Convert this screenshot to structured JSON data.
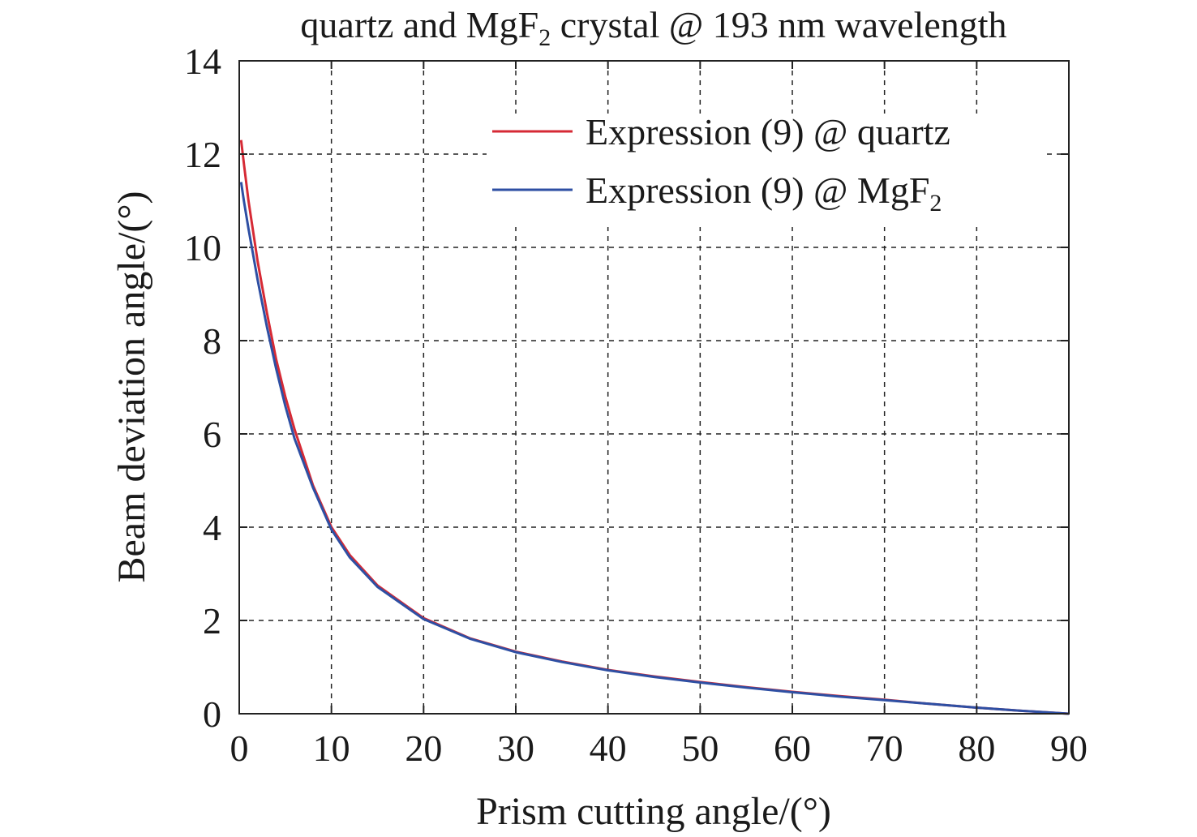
{
  "chart_data": {
    "type": "line",
    "title_parts": {
      "before": "quartz and MgF",
      "sub": "2",
      "after": " crystal  @ 193 nm wavelength"
    },
    "xlabel": "Prism cutting angle/(°)",
    "ylabel": "Beam deviation angle/(°)",
    "xlim": [
      0,
      90
    ],
    "ylim": [
      0,
      14
    ],
    "xticks": [
      0,
      10,
      20,
      30,
      40,
      50,
      60,
      70,
      80,
      90
    ],
    "yticks": [
      0,
      2,
      4,
      6,
      8,
      10,
      12,
      14
    ],
    "grid": true,
    "legend_position": "top-right",
    "series": [
      {
        "name": "Expression (9) @ quartz",
        "color": "#d62a35",
        "x": [
          0.2,
          0.5,
          1,
          2,
          3,
          4,
          5,
          6,
          8,
          10,
          12,
          15,
          20,
          25,
          30,
          35,
          40,
          45,
          50,
          55,
          60,
          65,
          70,
          75,
          80,
          85,
          90
        ],
        "y": [
          12.3,
          11.8,
          11.0,
          9.7,
          8.6,
          7.6,
          6.8,
          6.1,
          4.9,
          4.0,
          3.4,
          2.75,
          2.05,
          1.62,
          1.33,
          1.12,
          0.94,
          0.8,
          0.68,
          0.57,
          0.47,
          0.38,
          0.3,
          0.21,
          0.13,
          0.06,
          0.0
        ]
      },
      {
        "name": "Expression (9) @ MgF2",
        "name_parts": {
          "before": "Expression (9) @ MgF",
          "sub": "2"
        },
        "color": "#2e4fa3",
        "x": [
          0.2,
          0.5,
          1,
          2,
          3,
          4,
          5,
          6,
          8,
          10,
          12,
          15,
          20,
          25,
          30,
          35,
          40,
          45,
          50,
          55,
          60,
          65,
          70,
          75,
          80,
          85,
          90
        ],
        "y": [
          11.4,
          11.0,
          10.4,
          9.3,
          8.3,
          7.4,
          6.6,
          5.9,
          4.85,
          3.95,
          3.35,
          2.72,
          2.03,
          1.61,
          1.32,
          1.11,
          0.93,
          0.79,
          0.67,
          0.56,
          0.46,
          0.37,
          0.29,
          0.21,
          0.13,
          0.06,
          0.0
        ]
      }
    ]
  }
}
